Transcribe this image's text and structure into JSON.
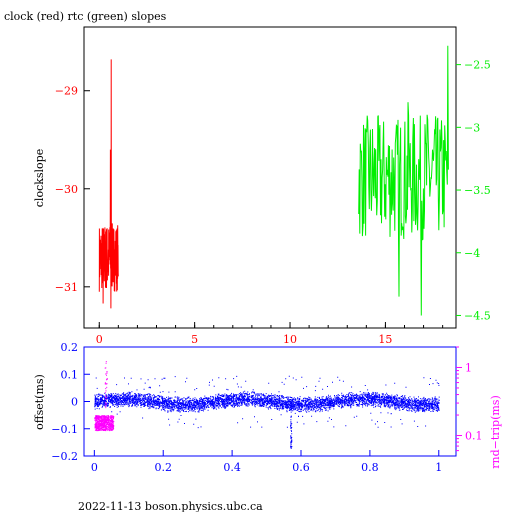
{
  "title": "clock (red) rtc (green) slopes",
  "footer": "2022-11-13  boson.physics.ubc.ca",
  "colors": {
    "clock": "#ff0000",
    "rtc": "#00ee00",
    "offset": "#0000ff",
    "rndtrip": "#ff00ff",
    "frame": "#000000"
  },
  "chart_data": [
    {
      "type": "line",
      "title": "clock (red) rtc (green) slopes",
      "ylabel": "clockslope",
      "y2label": "",
      "xlim": [
        -0.8,
        18.7
      ],
      "ylim": [
        -31.42,
        -28.35
      ],
      "y2lim": [
        -4.6,
        -2.2
      ],
      "x_ticks": [
        0,
        5,
        10,
        15
      ],
      "y_ticks": [
        -29,
        -30,
        -31
      ],
      "y2_ticks": [
        -2.5,
        -3,
        -3.5,
        -4,
        -4.5
      ],
      "x_tick_labels": [
        "0",
        "5",
        "10",
        "15"
      ],
      "y_tick_labels": [
        "−29",
        "−30",
        "−31"
      ],
      "y2_tick_labels": [
        "−2.5",
        "−3",
        "−3.5",
        "−4",
        "−4.5"
      ],
      "series": [
        {
          "name": "clock",
          "axis": "left",
          "x_range": [
            0.0,
            1.0
          ],
          "y_band": [
            -31.05,
            -30.35
          ],
          "y_min": -31.22,
          "y_max": -28.68,
          "points": 130
        },
        {
          "name": "rtc",
          "axis": "right",
          "x_range": [
            13.6,
            18.3
          ],
          "y_band": [
            -3.9,
            -2.9
          ],
          "y_min": -4.5,
          "y_max": -2.35,
          "points": 170
        }
      ]
    },
    {
      "type": "scatter",
      "xlabel": "",
      "ylabel": "offset(ms)",
      "y2label": "rnd−trip(ms)",
      "xlim": [
        -0.03,
        1.05
      ],
      "ylim": [
        -0.2,
        0.2
      ],
      "y2lim_log": [
        0.05,
        2.0
      ],
      "x_ticks": [
        0,
        0.2,
        0.4,
        0.6,
        0.8,
        1
      ],
      "y_ticks": [
        0.2,
        0.1,
        0,
        -0.1,
        -0.2
      ],
      "y2_ticks": [
        1,
        0.1
      ],
      "x_tick_labels": [
        "0",
        "0.2",
        "0.4",
        "0.6",
        "0.8",
        "1"
      ],
      "y_tick_labels": [
        "0.2",
        "0.1",
        "0",
        "−0.1",
        "−0.2"
      ],
      "y2_tick_labels": [
        "1",
        "0.1"
      ],
      "series": [
        {
          "name": "offset",
          "axis": "left",
          "x_range": [
            0.0,
            1.0
          ],
          "y_band": [
            -0.03,
            0.03
          ],
          "spike_x": 0.57,
          "spike_y_min": -0.17
        },
        {
          "name": "rnd-trip",
          "axis": "right",
          "x_range": [
            0.0,
            0.055
          ],
          "y_band": [
            0.12,
            0.2
          ],
          "y_max": 1.3
        }
      ]
    }
  ]
}
